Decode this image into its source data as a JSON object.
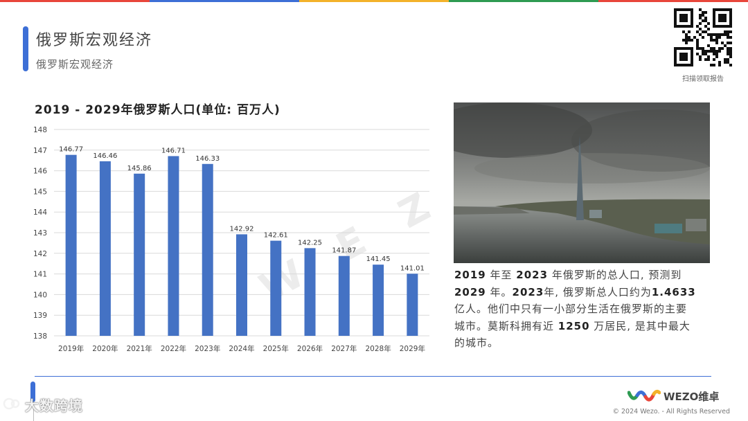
{
  "colors": {
    "accent": "#3d6fd6",
    "bar": "#4472c4",
    "top_bar": [
      "#e8463a",
      "#3d6fd6",
      "#f3b22a",
      "#2e9b52",
      "#e8463a"
    ]
  },
  "header": {
    "title": "俄罗斯宏观经济",
    "subtitle": "俄罗斯宏观经济"
  },
  "qr": {
    "icon": "qr-code-icon",
    "caption": "扫描领取报告"
  },
  "chart_data": {
    "type": "bar",
    "title": "2019 - 2029年俄罗斯人口(单位: 百万人)",
    "categories": [
      "2019年",
      "2020年",
      "2021年",
      "2022年",
      "2023年",
      "2024年",
      "2025年",
      "2026年",
      "2027年",
      "2028年",
      "2029年"
    ],
    "values": [
      146.77,
      146.46,
      145.86,
      146.71,
      146.33,
      142.92,
      142.61,
      142.25,
      141.87,
      141.45,
      141.01
    ],
    "value_labels": [
      "146.77",
      "146.46",
      "145.86",
      "146.71",
      "146.33",
      "142.92",
      "142.61",
      "142.25",
      "141.87",
      "141.45",
      "141.01"
    ],
    "ylim": [
      138,
      148
    ],
    "yticks": [
      138,
      139,
      140,
      141,
      142,
      143,
      144,
      145,
      146,
      147,
      148
    ],
    "grid": true,
    "xlabel": "",
    "ylabel": ""
  },
  "photo": {
    "icon": "city-skyline-photo"
  },
  "description": {
    "line1": [
      {
        "text": "2019",
        "bold": true
      },
      {
        "text": " 年至 ",
        "bold": false
      },
      {
        "text": "2023",
        "bold": true
      },
      {
        "text": " 年俄罗斯的总人口, 预测到",
        "bold": false
      }
    ],
    "line2": [
      {
        "text": "2029",
        "bold": true
      },
      {
        "text": " 年。",
        "bold": false
      },
      {
        "text": "2023",
        "bold": true
      },
      {
        "text": "年, 俄罗斯总人口约为",
        "bold": false
      },
      {
        "text": "1.4633",
        "bold": true
      }
    ],
    "line3": "亿人。他们中只有一小部分生活在俄罗斯的主要",
    "line4_a": "城市。莫斯科拥有近 ",
    "line4_b": "1250",
    "line4_c": " 万居民, 是其中最大",
    "line5": "的城市。"
  },
  "watermark": "W E Z O维卓",
  "footer": {
    "brand": "大数跨境",
    "tiny_text": "sta",
    "logo_text": "WEZO维卓",
    "copyright": "© 2024 Wezo. - All Rights Reserved"
  }
}
